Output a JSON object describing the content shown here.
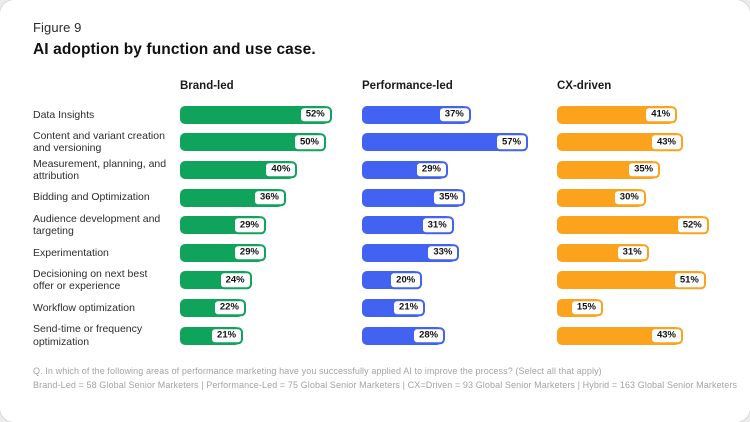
{
  "figure_label": "Figure 9",
  "title": "AI adoption by function and use case.",
  "chart_data": {
    "type": "bar",
    "orientation": "horizontal",
    "title": "AI adoption by function and use case.",
    "figure_label": "Figure 9",
    "value_suffix": "%",
    "xlim": [
      0,
      60
    ],
    "grid": false,
    "legend_position": "column-headers-top",
    "categories": [
      "Data Insights",
      "Content and variant creation and versioning",
      "Measurement, planning, and attribution",
      "Bidding and Optimization",
      "Audience development and targeting",
      "Experimentation",
      "Decisioning on next best offer or experience",
      "Workflow optimization",
      "Send-time or frequency optimization"
    ],
    "series": [
      {
        "name": "Brand-led",
        "color": "#10A35B",
        "values": [
          52,
          50,
          40,
          36,
          29,
          29,
          24,
          22,
          21
        ]
      },
      {
        "name": "Performance-led",
        "color": "#4262F2",
        "values": [
          37,
          57,
          29,
          35,
          31,
          33,
          20,
          21,
          28
        ]
      },
      {
        "name": "CX-driven",
        "color": "#FBA31C",
        "values": [
          41,
          43,
          35,
          30,
          52,
          31,
          51,
          15,
          43
        ]
      }
    ]
  },
  "footnotes": {
    "question": "Q. In which of the following areas of performance marketing have you successfully applied AI to improve the process? (Select all that apply)",
    "sample": "Brand-Led = 58 Global Senior Marketers | Performance-Led = 75 Global Senior Marketers | CX=Driven = 93 Global Senior Marketers | Hybrid = 163 Global Senior Marketers"
  },
  "colors": {
    "brand_led": "#10A35B",
    "performance_led": "#4262F2",
    "cx_driven": "#FBA31C",
    "card_background": "#FFFFFF",
    "footnote_text": "#A3A3A3"
  }
}
